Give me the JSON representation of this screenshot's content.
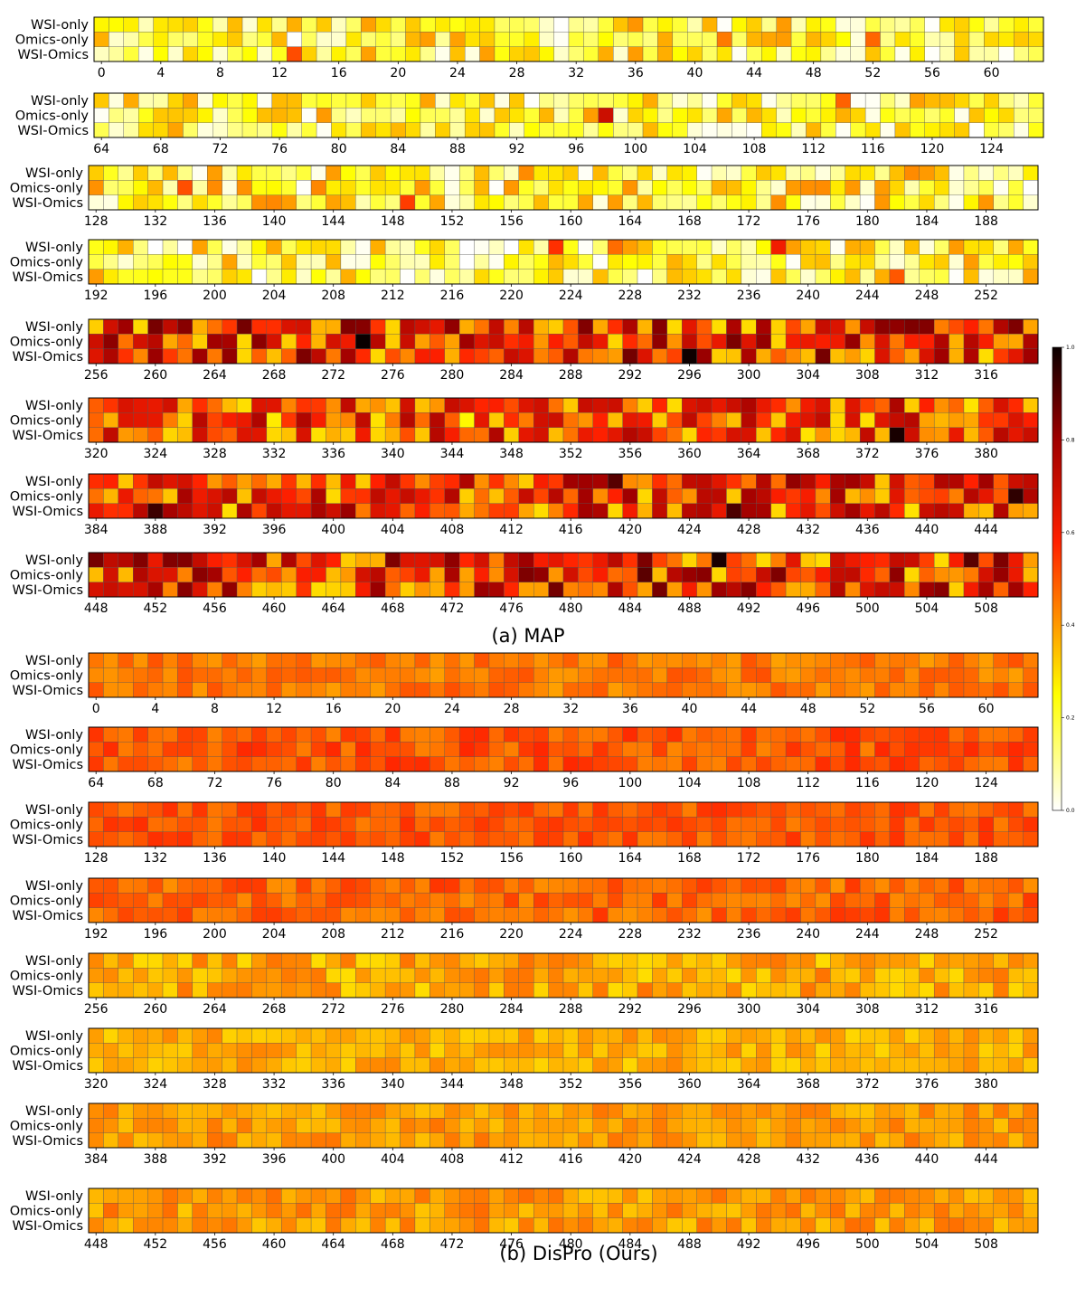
{
  "figure": {
    "caption_a": "(a) MAP",
    "caption_b": "(b) DisPro (Ours)"
  },
  "chart_data": {
    "type": "heatmap",
    "row_labels": [
      "WSI-only",
      "Omics-only",
      "WSI-Omics"
    ],
    "dimensions": 512,
    "columns_per_strip": 64,
    "tick_step": 4,
    "colormap": "hot_r",
    "colorbar": {
      "range": [
        0,
        1
      ],
      "ticks": [
        "0.0",
        "0.2",
        "0.4",
        "0.6",
        "0.8",
        "1.0"
      ]
    },
    "panels": [
      {
        "name": "(a) MAP",
        "strips": [
          {
            "start": 0,
            "label_level": [
              0.55,
              0.15,
              0.35
            ],
            "mean": 0.2,
            "spread": 0.2
          },
          {
            "start": 64,
            "label_level": [
              0.2,
              0.2,
              0.2
            ],
            "mean": 0.2,
            "spread": 0.2
          },
          {
            "start": 128,
            "label_level": [
              0.25,
              0.25,
              0.25
            ],
            "mean": 0.22,
            "spread": 0.22
          },
          {
            "start": 192,
            "label_level": [
              0.2,
              0.2,
              0.2
            ],
            "mean": 0.2,
            "spread": 0.2
          },
          {
            "start": 256,
            "label_level": [
              0.6,
              0.55,
              0.6
            ],
            "mean": 0.58,
            "spread": 0.28
          },
          {
            "start": 320,
            "label_level": [
              0.55,
              0.55,
              0.55
            ],
            "mean": 0.53,
            "spread": 0.24
          },
          {
            "start": 384,
            "label_level": [
              0.55,
              0.55,
              0.55
            ],
            "mean": 0.55,
            "spread": 0.26
          },
          {
            "start": 448,
            "label_level": [
              0.58,
              0.58,
              0.58
            ],
            "mean": 0.58,
            "spread": 0.28
          }
        ]
      },
      {
        "name": "(b) DisPro (Ours)",
        "strips": [
          {
            "start": 0,
            "mean": 0.45,
            "spread": 0.06
          },
          {
            "start": 64,
            "mean": 0.5,
            "spread": 0.07
          },
          {
            "start": 128,
            "mean": 0.5,
            "spread": 0.06
          },
          {
            "start": 192,
            "mean": 0.48,
            "spread": 0.07
          },
          {
            "start": 256,
            "mean": 0.38,
            "spread": 0.08
          },
          {
            "start": 320,
            "mean": 0.37,
            "spread": 0.06
          },
          {
            "start": 384,
            "mean": 0.4,
            "spread": 0.06
          },
          {
            "start": 448,
            "mean": 0.4,
            "spread": 0.07
          }
        ]
      }
    ]
  }
}
